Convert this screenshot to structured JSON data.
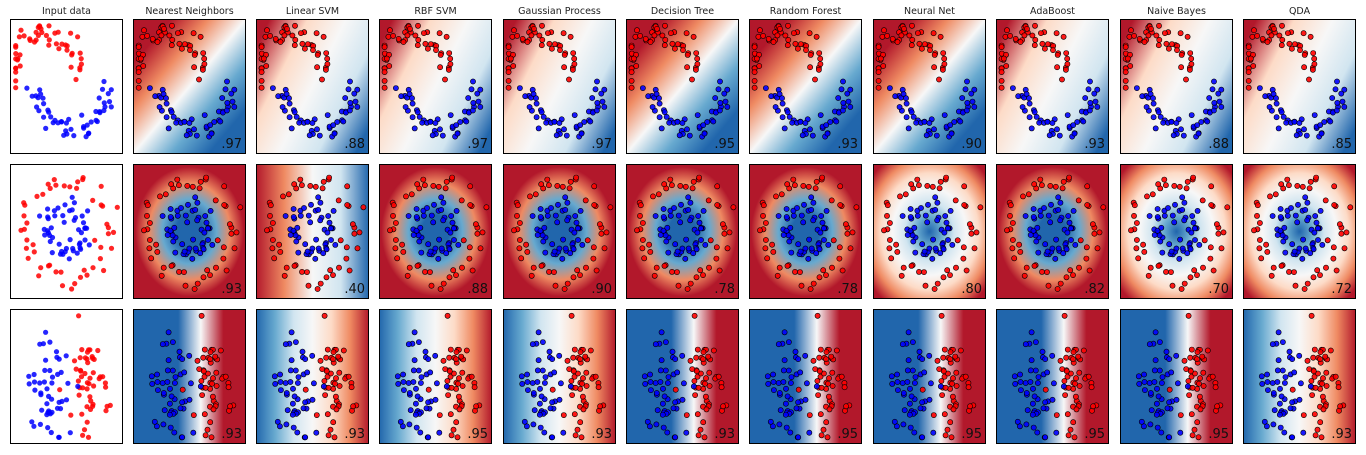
{
  "chart_data": {
    "type": "scatter",
    "classifiers": [
      "Input data",
      "Nearest Neighbors",
      "Linear SVM",
      "RBF SVM",
      "Gaussian Process",
      "Decision Tree",
      "Random Forest",
      "Neural Net",
      "AdaBoost",
      "Naive Bayes",
      "QDA"
    ],
    "datasets": [
      "moons",
      "circles",
      "linearly_separable"
    ],
    "scores": [
      [
        "",
        ".97",
        ".88",
        ".97",
        ".97",
        ".95",
        ".93",
        ".90",
        ".93",
        ".88",
        ".85"
      ],
      [
        "",
        ".93",
        ".40",
        ".88",
        ".90",
        ".78",
        ".78",
        ".80",
        ".82",
        ".70",
        ".72"
      ],
      [
        "",
        ".93",
        ".93",
        ".95",
        ".93",
        ".93",
        ".95",
        ".95",
        ".95",
        ".95",
        ".93"
      ]
    ],
    "class_colors": {
      "class_0": "#ff0000",
      "class_1": "#0000ff"
    },
    "colormap": "RdBu",
    "colormap_stops": [
      "#b2182b",
      "#ef8a62",
      "#fddbc7",
      "#f7f7f7",
      "#d1e5f0",
      "#67a9cf",
      "#2166ac"
    ],
    "grid": false,
    "ticks": false
  }
}
